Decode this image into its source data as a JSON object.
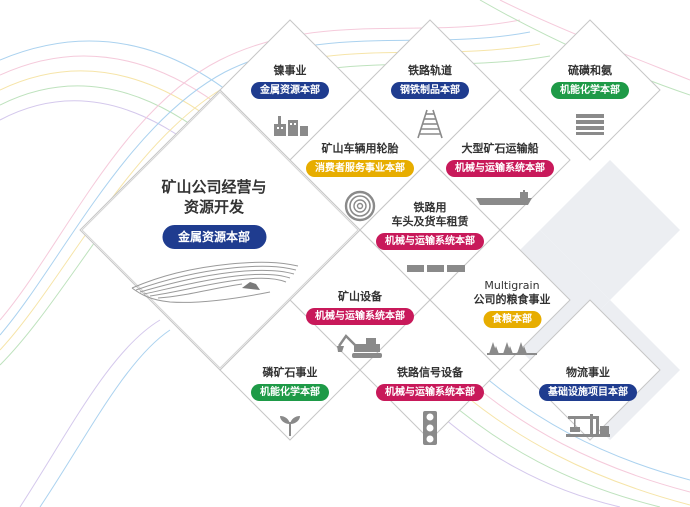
{
  "colors": {
    "navy": "#1f3c8f",
    "crimson": "#c8195a",
    "green": "#1e9a47",
    "gold": "#e7ad00",
    "line": "#c7c7c7",
    "shadow": "#e4e6ea"
  },
  "center": {
    "title_line1": "矿山公司经营与",
    "title_line2": "资源开发",
    "department": "金属资源本部"
  },
  "cells": [
    {
      "key": "nickel",
      "title": "镍事业",
      "department": "金属资源本部",
      "color": "navy",
      "icon": "plant-icon"
    },
    {
      "key": "rail-track",
      "title": "铁路轨道",
      "department": "钢铁制品本部",
      "color": "navy",
      "icon": "rail-track-icon"
    },
    {
      "key": "sulfur",
      "title": "硫磺和氨",
      "department": "机能化学本部",
      "color": "green",
      "icon": "stacked-sheets-icon"
    },
    {
      "key": "mining-tires",
      "title": "矿山车辆用轮胎",
      "department": "消费者服务事业本部",
      "color": "gold",
      "icon": "tire-icon"
    },
    {
      "key": "ore-ship",
      "title": "大型矿石运输船",
      "department": "机械与运输系统本部",
      "color": "crimson",
      "icon": "ship-icon"
    },
    {
      "key": "locomotive",
      "title_line1": "铁路用",
      "title_line2": "车头及货车租赁",
      "department": "机械与运输系统本部",
      "color": "crimson",
      "icon": "train-icon"
    },
    {
      "key": "mining-equipment",
      "title": "矿山设备",
      "department": "机械与运输系统本部",
      "color": "crimson",
      "icon": "excavator-icon"
    },
    {
      "key": "multigrain",
      "title_line1": "Multigrain",
      "title_line2": "公司的粮食事业",
      "department": "食粮本部",
      "color": "gold",
      "icon": "grain-field-icon"
    },
    {
      "key": "phosphate",
      "title": "磷矿石事业",
      "department": "机能化学本部",
      "color": "green",
      "icon": "sprout-icon"
    },
    {
      "key": "rail-signal",
      "title": "铁路信号设备",
      "department": "机械与运输系统本部",
      "color": "crimson",
      "icon": "traffic-signal-icon"
    },
    {
      "key": "logistics",
      "title": "物流事业",
      "department": "基础设施项目本部",
      "color": "navy",
      "icon": "port-crane-icon"
    }
  ]
}
